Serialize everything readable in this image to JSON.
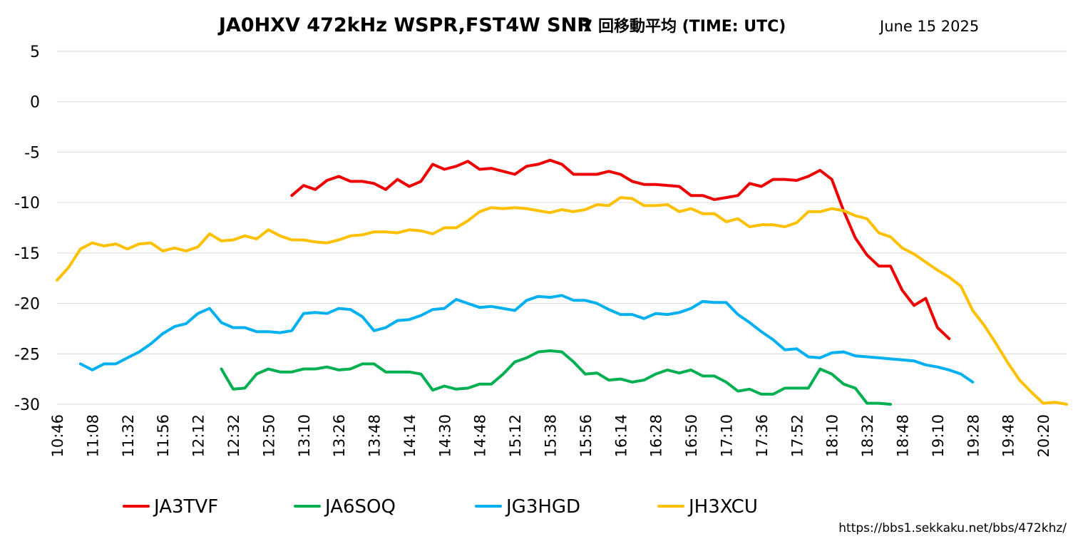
{
  "chart_data": {
    "type": "line",
    "title": "JA0HXV 472kHz WSPR,FST4W SNR",
    "title_note": "7 回移動平均 (TIME: UTC)",
    "date": "June 15 2025",
    "source_url": "https://bbs1.sekkaku.net/bbs/472khz/",
    "ylim": [
      -30,
      5
    ],
    "yticks": [
      5,
      0,
      -5,
      -10,
      -15,
      -20,
      -25,
      -30
    ],
    "grid": true,
    "legend_position": "bottom",
    "x_tick_labels": [
      "10:46",
      "11:08",
      "11:32",
      "11:56",
      "12:12",
      "12:32",
      "12:50",
      "13:10",
      "13:26",
      "13:48",
      "14:14",
      "14:30",
      "14:48",
      "15:12",
      "15:38",
      "15:56",
      "16:14",
      "16:28",
      "16:50",
      "17:10",
      "17:36",
      "17:52",
      "18:10",
      "18:32",
      "18:48",
      "19:10",
      "19:28",
      "19:48",
      "20:20"
    ],
    "x_tick_steps": [
      0,
      3,
      6,
      9,
      12,
      15,
      18,
      21,
      24,
      27,
      30,
      33,
      36,
      39,
      42,
      45,
      48,
      51,
      54,
      57,
      60,
      63,
      66,
      69,
      72,
      75,
      78,
      81,
      84
    ],
    "n_steps": 86,
    "series": [
      {
        "name": "JA3TVF",
        "color": "#ee0000",
        "start": 20,
        "values": [
          -9.3,
          -8.3,
          -8.7,
          -7.8,
          -7.4,
          -7.9,
          -7.9,
          -8.1,
          -8.7,
          -7.7,
          -8.4,
          -7.9,
          -6.2,
          -6.7,
          -6.4,
          -5.9,
          -6.7,
          -6.6,
          -6.9,
          -7.2,
          -6.4,
          -6.2,
          -5.8,
          -6.2,
          -7.2,
          -7.2,
          -7.2,
          -6.9,
          -7.2,
          -7.9,
          -8.2,
          -8.2,
          -8.3,
          -8.4,
          -9.3,
          -9.3,
          -9.7,
          -9.5,
          -9.3,
          -8.1,
          -8.4,
          -7.7,
          -7.7,
          -7.8,
          -7.4,
          -6.8,
          -7.7,
          -10.8,
          -13.5,
          -15.2,
          -16.3,
          -16.3,
          -18.7,
          -20.2,
          -19.5,
          -22.4,
          -23.5
        ]
      },
      {
        "name": "JA6SOQ",
        "color": "#00b050",
        "start": 14,
        "values": [
          -26.5,
          -28.5,
          -28.4,
          -27.0,
          -26.5,
          -26.8,
          -26.8,
          -26.5,
          -26.5,
          -26.3,
          -26.6,
          -26.5,
          -26.0,
          -26.0,
          -26.8,
          -26.8,
          -26.8,
          -27.0,
          -28.6,
          -28.2,
          -28.5,
          -28.4,
          -28.0,
          -28.0,
          -27.0,
          -25.8,
          -25.4,
          -24.8,
          -24.7,
          -24.8,
          -25.8,
          -27.0,
          -26.9,
          -27.6,
          -27.5,
          -27.8,
          -27.6,
          -27.0,
          -26.6,
          -26.9,
          -26.6,
          -27.2,
          -27.2,
          -27.8,
          -28.7,
          -28.5,
          -29.0,
          -29.0,
          -28.4,
          -28.4,
          -28.4,
          -26.5,
          -27.0,
          -28.0,
          -28.4,
          -29.9,
          -29.9,
          -30.0
        ]
      },
      {
        "name": "JG3HGD",
        "color": "#00b0f0",
        "start": 2,
        "values": [
          -26.0,
          -26.6,
          -26.0,
          -26.0,
          -25.4,
          -24.8,
          -24.0,
          -23.0,
          -22.3,
          -22.0,
          -21.0,
          -20.5,
          -21.9,
          -22.4,
          -22.4,
          -22.8,
          -22.8,
          -22.9,
          -22.7,
          -21.0,
          -20.9,
          -21.0,
          -20.5,
          -20.6,
          -21.3,
          -22.7,
          -22.4,
          -21.7,
          -21.6,
          -21.2,
          -20.6,
          -20.5,
          -19.6,
          -20.0,
          -20.4,
          -20.3,
          -20.5,
          -20.7,
          -19.7,
          -19.3,
          -19.4,
          -19.2,
          -19.7,
          -19.7,
          -20.0,
          -20.6,
          -21.1,
          -21.1,
          -21.5,
          -21.0,
          -21.1,
          -20.9,
          -20.5,
          -19.8,
          -19.9,
          -19.9,
          -21.1,
          -21.9,
          -22.8,
          -23.6,
          -24.6,
          -24.5,
          -25.3,
          -25.4,
          -24.9,
          -24.8,
          -25.2,
          -25.3,
          -25.4,
          -25.5,
          -25.6,
          -25.7,
          -26.1,
          -26.3,
          -26.6,
          -27.0,
          -27.8
        ]
      },
      {
        "name": "JH3XCU",
        "color": "#ffc000",
        "start": 0,
        "values": [
          -17.7,
          -16.4,
          -14.6,
          -14.0,
          -14.3,
          -14.1,
          -14.6,
          -14.1,
          -14.0,
          -14.8,
          -14.5,
          -14.8,
          -14.4,
          -13.1,
          -13.8,
          -13.7,
          -13.3,
          -13.6,
          -12.7,
          -13.3,
          -13.7,
          -13.7,
          -13.9,
          -14.0,
          -13.7,
          -13.3,
          -13.2,
          -12.9,
          -12.9,
          -13.0,
          -12.7,
          -12.8,
          -13.1,
          -12.5,
          -12.5,
          -11.8,
          -10.9,
          -10.5,
          -10.6,
          -10.5,
          -10.6,
          -10.8,
          -11.0,
          -10.7,
          -10.9,
          -10.7,
          -10.2,
          -10.3,
          -9.5,
          -9.6,
          -10.3,
          -10.3,
          -10.2,
          -10.9,
          -10.6,
          -11.1,
          -11.1,
          -11.9,
          -11.6,
          -12.4,
          -12.2,
          -12.2,
          -12.4,
          -12.0,
          -10.9,
          -10.9,
          -10.6,
          -10.8,
          -11.3,
          -11.6,
          -13.0,
          -13.4,
          -14.5,
          -15.1,
          -15.9,
          -16.7,
          -17.4,
          -18.3,
          -20.7,
          -22.2,
          -24.0,
          -25.9,
          -27.6,
          -28.8,
          -29.9,
          -29.8,
          -30.0
        ]
      }
    ]
  }
}
